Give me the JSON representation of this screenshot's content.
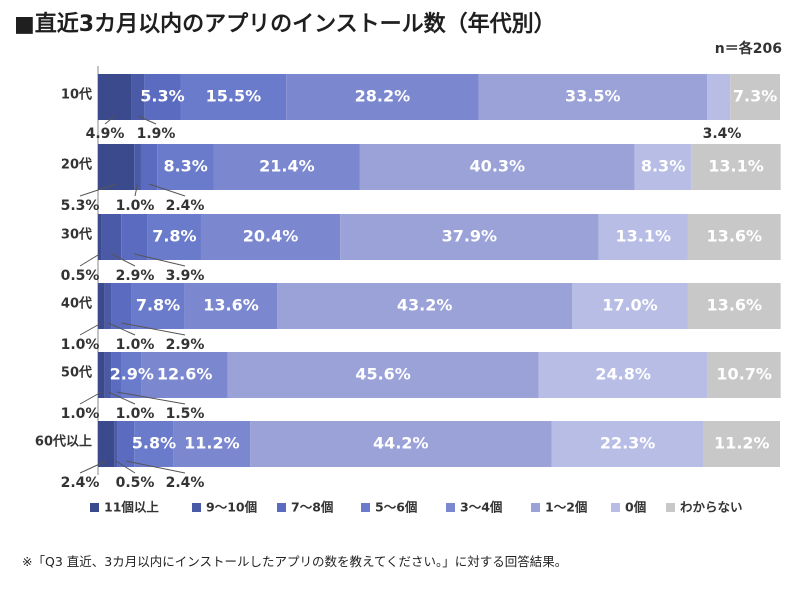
{
  "title": "■直近3カ月以内のアプリのインストール数（年代別）",
  "sample_note": "n＝各206",
  "footnote": "※「Q3 直近、3カ月以内にインストールしたアプリの数を教えてください。」に対する回答結果。",
  "chart_data": {
    "type": "bar",
    "orientation": "horizontal-stacked-100",
    "categories": [
      "10代",
      "20代",
      "30代",
      "40代",
      "50代",
      "60代以上"
    ],
    "series": [
      {
        "name": "11個以上",
        "color": "#3a4a8c",
        "values": [
          4.9,
          5.3,
          0.5,
          1.0,
          1.0,
          2.4
        ]
      },
      {
        "name": "9〜10個",
        "color": "#4a5aa6",
        "values": [
          1.9,
          1.0,
          2.9,
          1.0,
          1.0,
          0.5
        ]
      },
      {
        "name": "7〜8個",
        "color": "#5b6cc0",
        "values": [
          5.3,
          2.4,
          3.9,
          2.9,
          1.5,
          2.4
        ]
      },
      {
        "name": "5〜6個",
        "color": "#6b7bcb",
        "values": [
          15.5,
          8.3,
          7.8,
          7.8,
          2.9,
          5.8
        ]
      },
      {
        "name": "3〜4個",
        "color": "#7b87cf",
        "values": [
          28.2,
          21.4,
          20.4,
          13.6,
          12.6,
          11.2
        ]
      },
      {
        "name": "1〜2個",
        "color": "#9aa2d8",
        "values": [
          33.5,
          40.3,
          37.9,
          43.2,
          45.6,
          44.2
        ]
      },
      {
        "name": "0個",
        "color": "#b7bde5",
        "values": [
          3.4,
          8.3,
          13.1,
          17.0,
          24.8,
          22.3
        ]
      },
      {
        "name": "わからない",
        "color": "#c8c8c8",
        "values": [
          7.3,
          13.1,
          13.6,
          13.6,
          10.7,
          11.2
        ]
      }
    ],
    "inside_labels": [
      [
        null,
        null,
        "5.3%",
        "15.5%",
        "28.2%",
        "33.5%",
        null,
        "7.3%"
      ],
      [
        null,
        null,
        null,
        "8.3%",
        "21.4%",
        "40.3%",
        "8.3%",
        "13.1%"
      ],
      [
        null,
        null,
        null,
        "7.8%",
        "20.4%",
        "37.9%",
        "13.1%",
        "13.6%"
      ],
      [
        null,
        null,
        null,
        "7.8%",
        "13.6%",
        "43.2%",
        "17.0%",
        "13.6%"
      ],
      [
        null,
        null,
        null,
        "2.9%",
        "12.6%",
        "45.6%",
        "24.8%",
        "10.7%"
      ],
      [
        null,
        null,
        null,
        "5.8%",
        "11.2%",
        "44.2%",
        "22.3%",
        "11.2%"
      ]
    ],
    "outside_labels": [
      [
        {
          "text": "4.9%",
          "series": 0
        },
        {
          "text": "1.9%",
          "series": 1
        },
        {
          "text": "3.4%",
          "series": 6
        }
      ],
      [
        {
          "text": "5.3%",
          "series": 0
        },
        {
          "text": "1.0%",
          "series": 1
        },
        {
          "text": "2.4%",
          "series": 2
        }
      ],
      [
        {
          "text": "0.5%",
          "series": 0
        },
        {
          "text": "2.9%",
          "series": 1
        },
        {
          "text": "3.9%",
          "series": 2
        }
      ],
      [
        {
          "text": "1.0%",
          "series": 0
        },
        {
          "text": "1.0%",
          "series": 1
        },
        {
          "text": "2.9%",
          "series": 2
        }
      ],
      [
        {
          "text": "1.0%",
          "series": 0
        },
        {
          "text": "1.0%",
          "series": 1
        },
        {
          "text": "1.5%",
          "series": 2
        }
      ],
      [
        {
          "text": "2.4%",
          "series": 0
        },
        {
          "text": "0.5%",
          "series": 1
        },
        {
          "text": "2.4%",
          "series": 2
        }
      ]
    ],
    "xlim": [
      0,
      100
    ],
    "legend_position": "bottom"
  }
}
